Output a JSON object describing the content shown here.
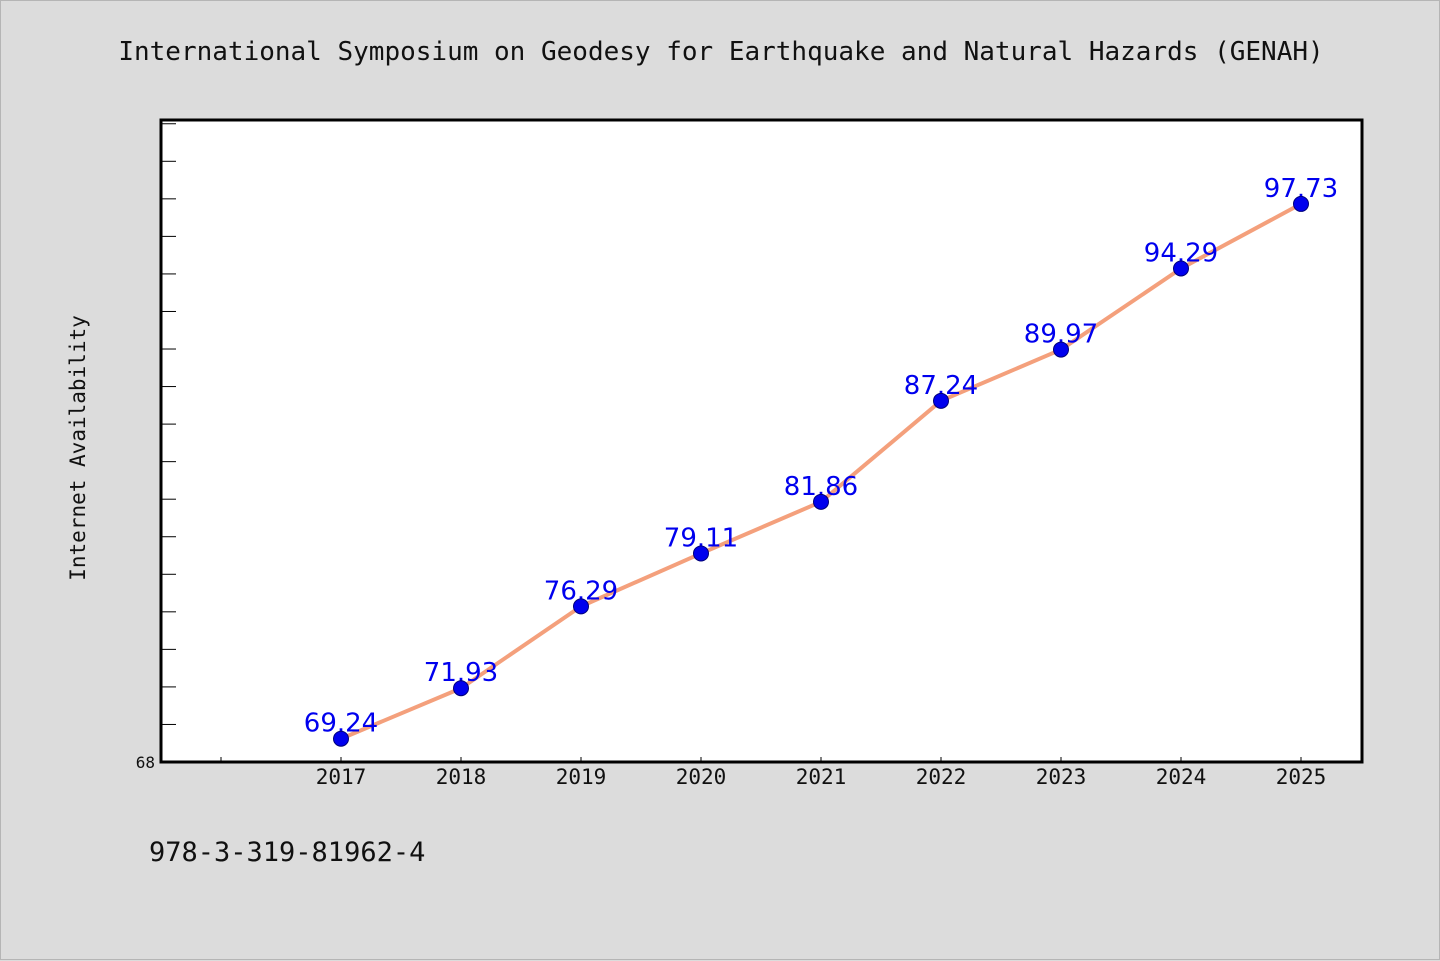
{
  "chart_data": {
    "type": "line",
    "title": "International Symposium on Geodesy for Earthquake and Natural Hazards (GENAH)",
    "xlabel": "",
    "ylabel": "Internet Availability",
    "categories": [
      "2017",
      "2018",
      "2019",
      "2020",
      "2021",
      "2022",
      "2023",
      "2024",
      "2025"
    ],
    "series": [
      {
        "values": [
          69.24,
          71.93,
          76.29,
          79.11,
          81.86,
          87.24,
          89.97,
          94.29,
          97.73
        ],
        "data_labels": [
          "69.24",
          "71.93",
          "76.29",
          "79.11",
          "81.86",
          "87.24",
          "89.97",
          "94.29",
          "97.73"
        ]
      }
    ],
    "y_tick_labels": [
      "68"
    ],
    "ylim": [
      68,
      102.2
    ],
    "grid": false,
    "legend": "none",
    "line_color": "#f4a07c",
    "marker_color": "#0000ee",
    "label_color": "#0000ee"
  },
  "footnote": "978-3-319-81962-4"
}
